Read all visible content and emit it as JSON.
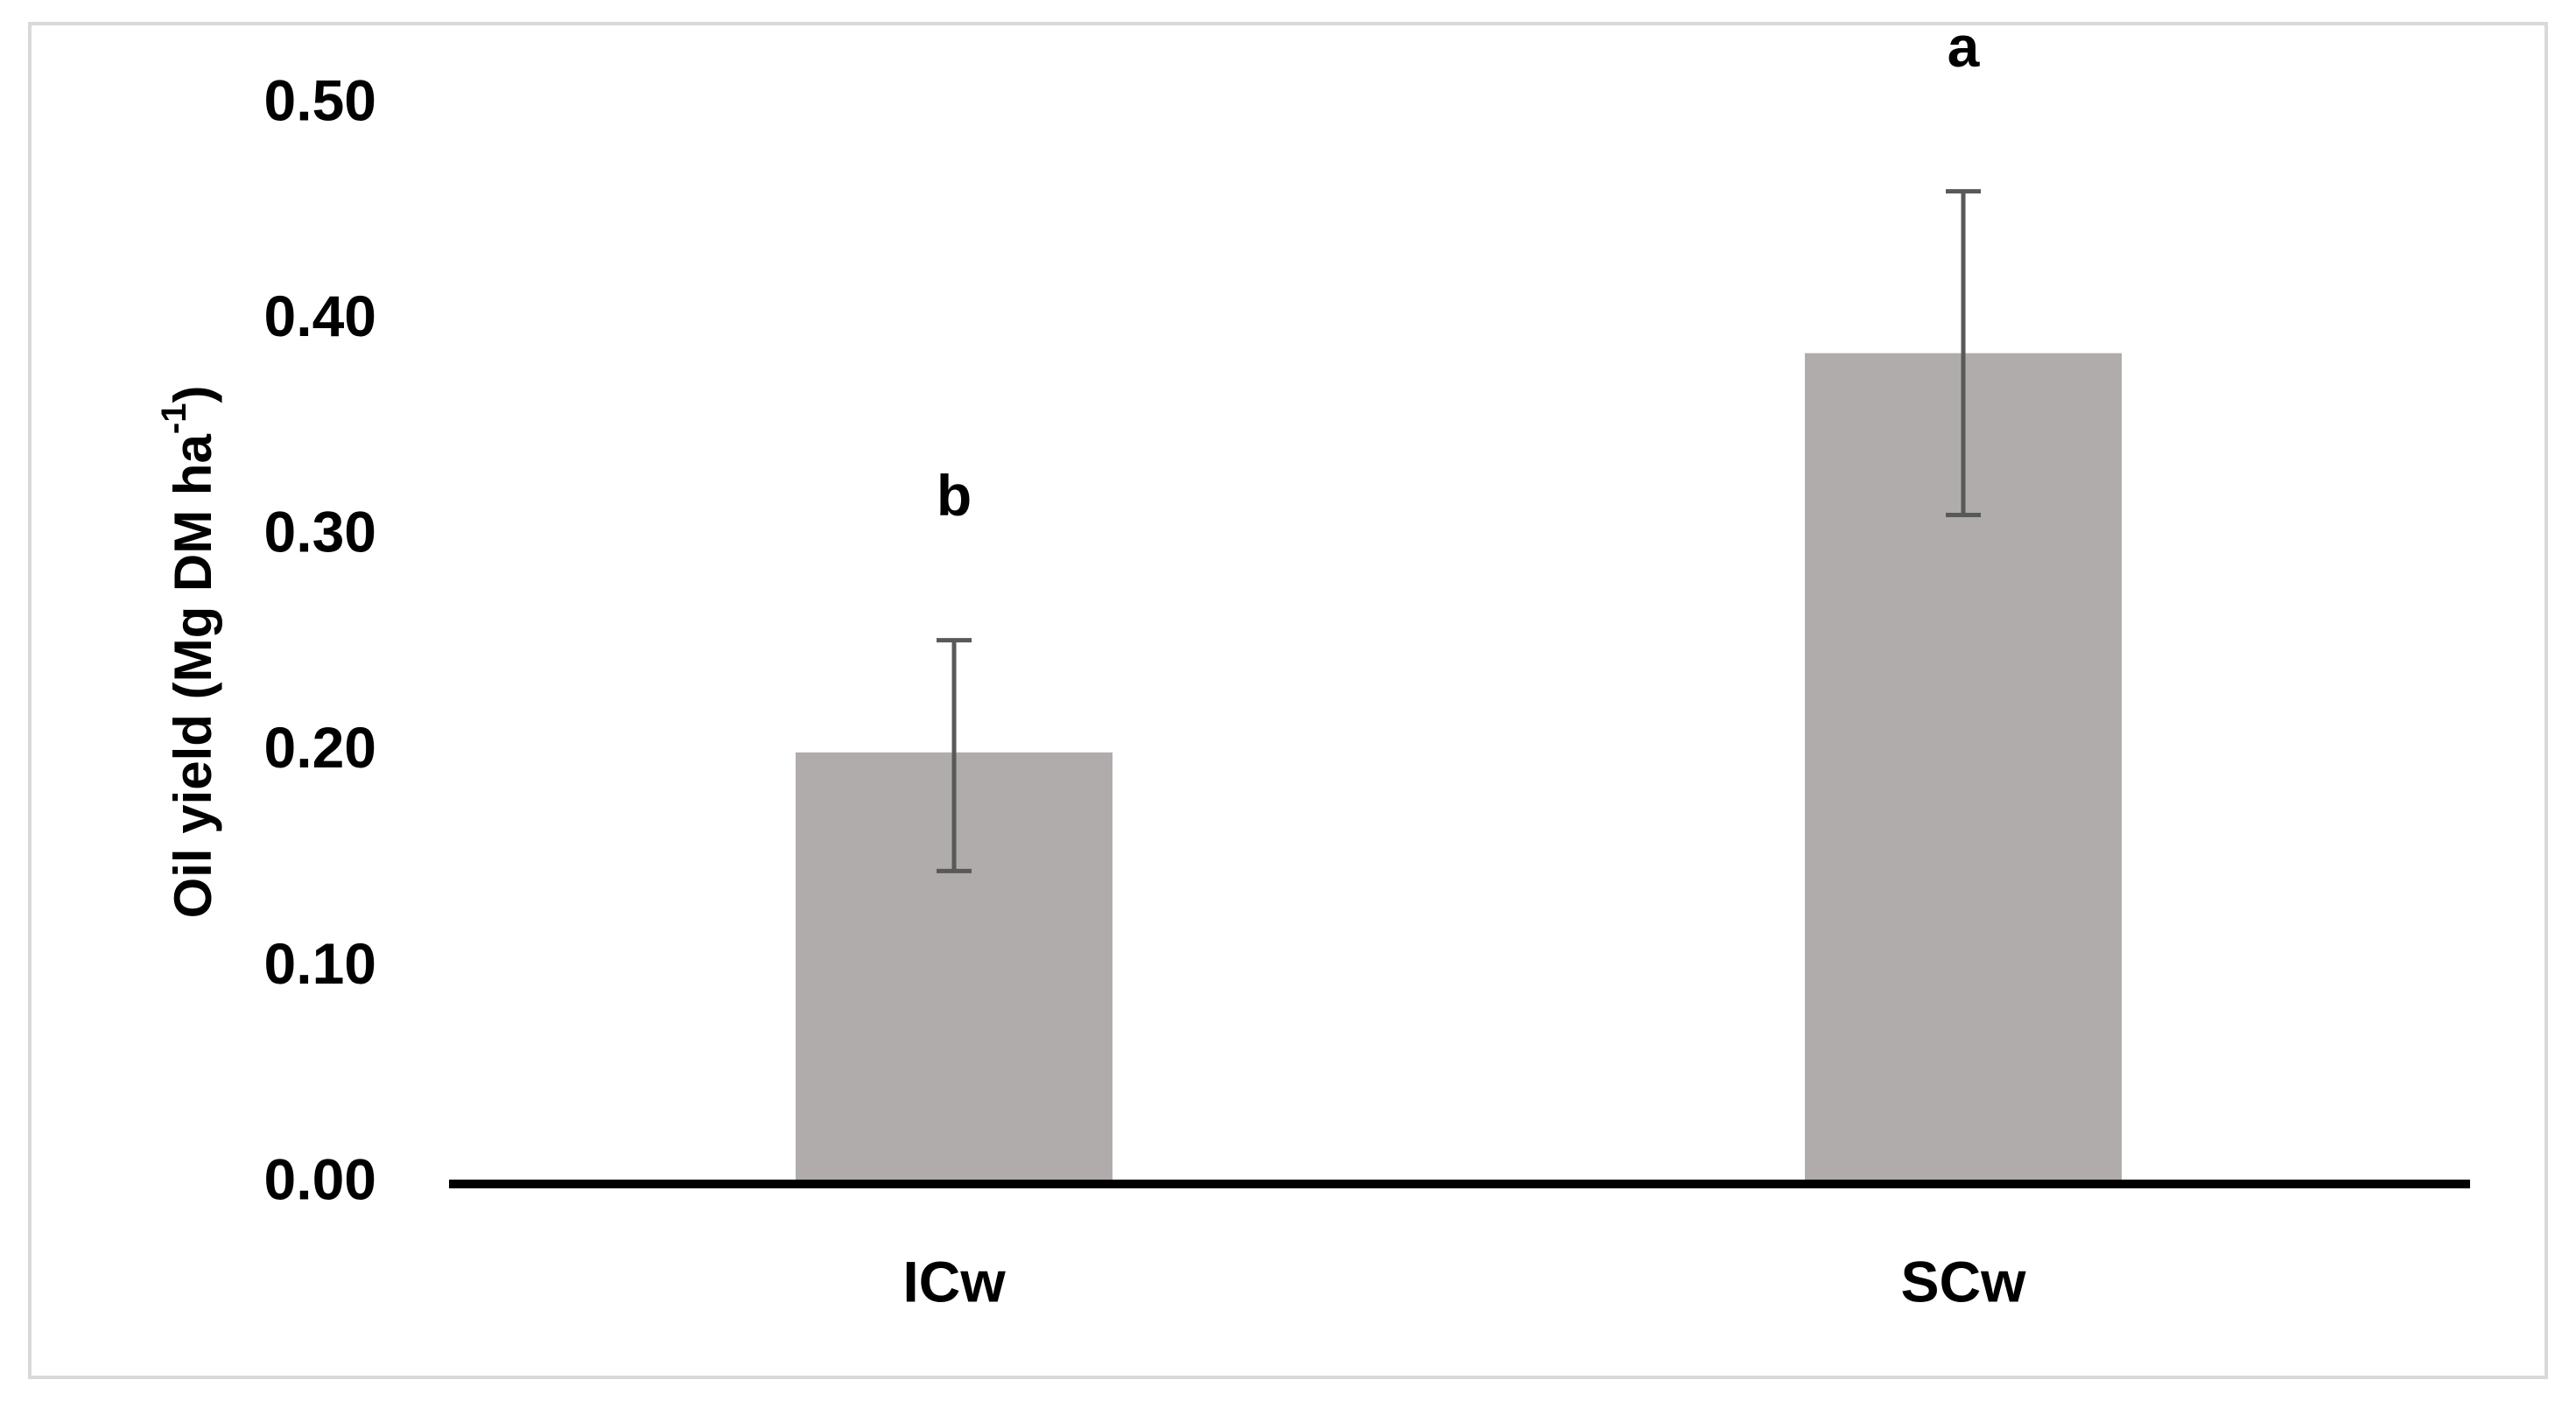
{
  "chart_data": {
    "type": "bar",
    "title": "",
    "xlabel": "",
    "ylabel": "Oil yield (Mg DM ha",
    "ylabel_superscript": "-1",
    "ylabel_suffix": ")",
    "categories": [
      "ICw",
      "SCw"
    ],
    "values": [
      0.2,
      0.385
    ],
    "error_low": [
      0.145,
      0.31
    ],
    "error_high": [
      0.252,
      0.46
    ],
    "significance_letters": [
      "b",
      "a"
    ],
    "ylim": [
      0,
      0.5
    ],
    "yticks": [
      "0.00",
      "0.10",
      "0.20",
      "0.30",
      "0.40",
      "0.50"
    ],
    "ytick_values": [
      0,
      0.1,
      0.2,
      0.3,
      0.4,
      0.5
    ],
    "grid": false,
    "legend": "none",
    "colors": {
      "bar": "#AFACAB",
      "error_bar": "#595959",
      "axis": "#000000",
      "frame": "#D9D9D9"
    }
  }
}
